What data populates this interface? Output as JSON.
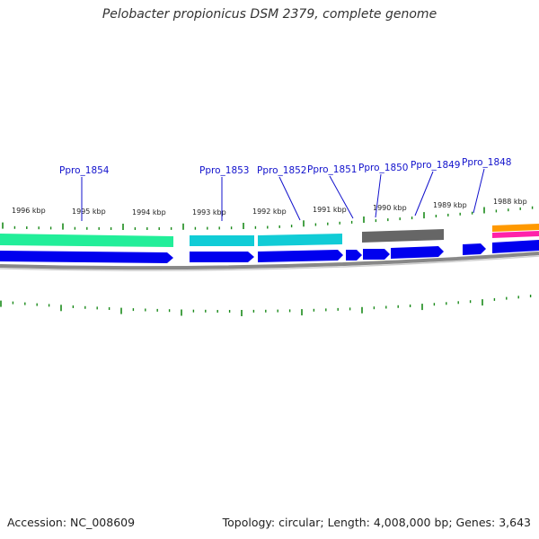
{
  "title": "Pelobacter propionicus DSM 2379, complete genome",
  "footer": {
    "accession": "Accession: NC_008609",
    "summary": "Topology: circular; Length: 4,008,000 bp; Genes: 3,643"
  },
  "colors": {
    "gene_label": "#1111cc",
    "tick": "#1a8a1a",
    "cds_arrow": "#0000ee",
    "backbone": "#888888",
    "feature_green": "#22ee99",
    "feature_cyan": "#11ccd6",
    "feature_gray": "#666666",
    "feature_orange": "#ff9900",
    "feature_pink": "#ff22aa"
  },
  "kbp_labels": [
    "1996 kbp",
    "1995 kbp",
    "1994 kbp",
    "1993 kbp",
    "1992 kbp",
    "1991 kbp",
    "1990 kbp",
    "1989 kbp",
    "1988 kbp"
  ],
  "gene_labels": [
    "Ppro_1854",
    "Ppro_1853",
    "Ppro_1852",
    "Ppro_1851",
    "Ppro_1850",
    "Ppro_1849",
    "Ppro_1848"
  ]
}
